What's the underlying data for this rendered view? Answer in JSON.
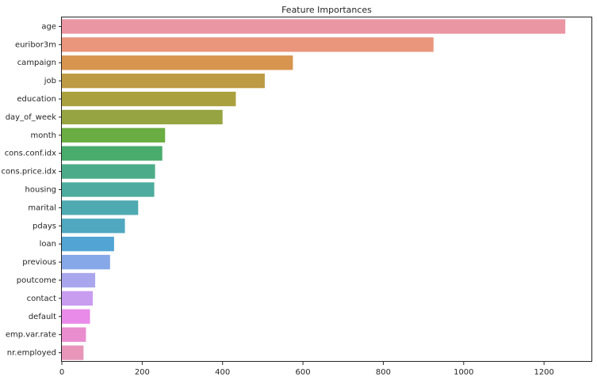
{
  "chart_data": {
    "type": "bar",
    "orientation": "horizontal",
    "title": "Feature Importances",
    "xlabel": "",
    "ylabel": "",
    "categories": [
      "age",
      "euribor3m",
      "campaign",
      "job",
      "education",
      "day_of_week",
      "month",
      "cons.conf.idx",
      "cons.price.idx",
      "housing",
      "marital",
      "pdays",
      "loan",
      "previous",
      "poutcome",
      "contact",
      "default",
      "emp.var.rate",
      "nr.employed"
    ],
    "values": [
      1253,
      925,
      575,
      505,
      433,
      400,
      257,
      250,
      232,
      230,
      190,
      157,
      130,
      120,
      83,
      77,
      70,
      60,
      54
    ],
    "colors": [
      "#ea96a3",
      "#e9967c",
      "#d8954f",
      "#bd9b44",
      "#aba03e",
      "#96a441",
      "#6aad42",
      "#49ac6c",
      "#4cac89",
      "#4dab9f",
      "#4eaab0",
      "#50a8c0",
      "#51a4d3",
      "#86a8e8",
      "#aaa6ee",
      "#c89df0",
      "#e88be9",
      "#e98dcf",
      "#e796ba"
    ],
    "xlim": [
      0,
      1320
    ],
    "xticks": [
      0,
      200,
      400,
      600,
      800,
      1000,
      1200
    ],
    "grid": false,
    "legend": "none"
  }
}
